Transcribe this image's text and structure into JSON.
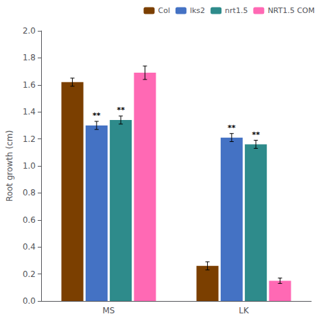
{
  "chart_data": {
    "type": "bar",
    "categories": [
      "MS",
      "LK"
    ],
    "series": [
      {
        "name": "Col",
        "color": "#7B3F00",
        "values": [
          1.62,
          0.26
        ],
        "errors": [
          0.03,
          0.03
        ]
      },
      {
        "name": "lks2",
        "color": "#4472C4",
        "values": [
          1.3,
          1.21
        ],
        "errors": [
          0.03,
          0.03
        ]
      },
      {
        "name": "nrt1.5",
        "color": "#2E8B8B",
        "values": [
          1.34,
          1.16
        ],
        "errors": [
          0.03,
          0.03
        ]
      },
      {
        "name": "NRT1.5 COM",
        "color": "#FF69B4",
        "values": [
          1.69,
          0.15
        ],
        "errors": [
          0.05,
          0.02
        ]
      }
    ],
    "ylabel": "Root growth (cm)",
    "ylim": [
      0,
      2.0
    ],
    "yticks": [
      {
        "value": 0.0,
        "label": "0.0"
      },
      0.2,
      0.4,
      0.6,
      0.8,
      {
        "value": 1.0,
        "label": "1.0"
      },
      1.2,
      1.4,
      1.6,
      1.8,
      {
        "value": 2.0,
        "label": "2.0"
      }
    ],
    "grid": false,
    "legend": "upper right",
    "annotations": [
      {
        "text": "**",
        "series": "lks2",
        "category": "MS"
      },
      {
        "text": "**",
        "series": "nrt1.5",
        "category": "MS"
      },
      {
        "text": "**",
        "series": "lks2",
        "category": "LK"
      },
      {
        "text": "**",
        "series": "nrt1.5",
        "category": "LK"
      }
    ]
  }
}
